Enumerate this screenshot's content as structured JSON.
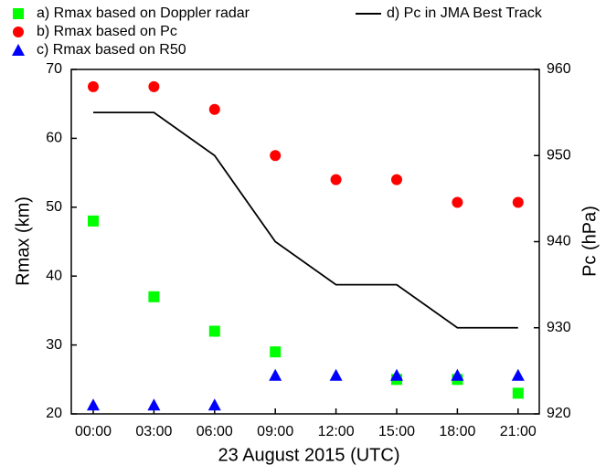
{
  "chart_data": {
    "type": "line",
    "categories": [
      "00:00",
      "03:00",
      "06:00",
      "09:00",
      "12:00",
      "15:00",
      "18:00",
      "21:00"
    ],
    "xlabel": "23 August 2015 (UTC)",
    "ylabel": "Rmax (km)",
    "y2label": "Pc (hPa)",
    "ylim": [
      20,
      70
    ],
    "yticks": [
      20,
      30,
      40,
      50,
      60,
      70
    ],
    "y2lim": [
      920,
      960
    ],
    "y2ticks": [
      920,
      930,
      940,
      950,
      960
    ],
    "grid": false,
    "series": [
      {
        "name": "a) Rmax based on Doppler radar",
        "color": "#00ff00",
        "marker": "square",
        "values": [
          48,
          37,
          32,
          29,
          null,
          25,
          25,
          23
        ]
      },
      {
        "name": "b) Rmax based on Pc",
        "color": "#ff0000",
        "marker": "circle",
        "values": [
          67.5,
          67.5,
          64.2,
          57.5,
          54,
          54,
          50.7,
          50.7
        ]
      },
      {
        "name": "c) Rmax based on R50",
        "color": "#0000ff",
        "marker": "triangle",
        "values": [
          21.3,
          21.3,
          21.3,
          25.6,
          25.6,
          25.6,
          25.6,
          25.6
        ]
      },
      {
        "name": "d) Pc in JMA Best Track",
        "color": "#000000",
        "marker": "line",
        "axis": "y2",
        "values": [
          955,
          955,
          950,
          940,
          935,
          935,
          930,
          930
        ]
      }
    ]
  }
}
